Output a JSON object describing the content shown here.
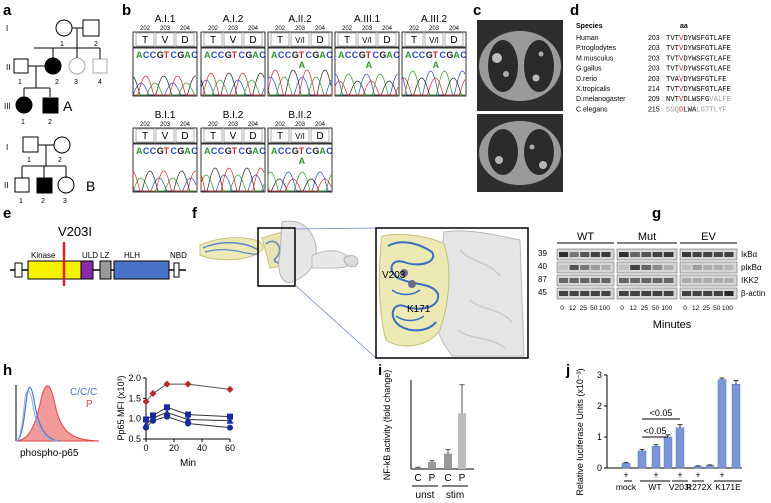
{
  "panel_labels": [
    "a",
    "b",
    "c",
    "d",
    "e",
    "f",
    "g",
    "h",
    "i",
    "j"
  ],
  "pedigree": {
    "family_a_label": "A",
    "family_b_label": "B",
    "gen_labels_a": [
      "I",
      "II",
      "III"
    ],
    "gen_labels_b": [
      "I",
      "II"
    ],
    "nums_a_I": [
      "1",
      "2"
    ],
    "nums_a_II": [
      "1",
      "2",
      "3",
      "4"
    ],
    "nums_a_III": [
      "1",
      "2"
    ],
    "nums_b_I": [
      "1",
      "2"
    ],
    "nums_b_II": [
      "1",
      "2",
      "3"
    ]
  },
  "chromatograms": {
    "samples_top": [
      "A.I.1",
      "A.I.2",
      "A.II.2",
      "A.III.1",
      "A.III.2"
    ],
    "samples_bottom": [
      "B.I.1",
      "B.I.2",
      "B.II.2"
    ],
    "positions": [
      "202",
      "203",
      "204"
    ],
    "aa_wt": [
      "T",
      "V",
      "D"
    ],
    "aa_het": [
      "T",
      "V/I",
      "D"
    ],
    "seq_prefix": "ACCG",
    "seq_mid": "T",
    "seq_suffix": "CGAC",
    "variant_base": "A"
  },
  "alignment": {
    "header_species": "Species",
    "header_aa": "aa",
    "rows": [
      {
        "species": "Human",
        "pos": "203",
        "seq": "TVTVDYWSFGTLAFE"
      },
      {
        "species": "P.troglodytes",
        "pos": "203",
        "seq": "TVTVDYWSFGTLAFE"
      },
      {
        "species": "M.musculus",
        "pos": "203",
        "seq": "TVTVDYWSFGTLAFE"
      },
      {
        "species": "G.gallus",
        "pos": "203",
        "seq": "TVTVDYWSFGTLAFE"
      },
      {
        "species": "D.rerio",
        "pos": "203",
        "seq": "TVAVDYWSFGTLFE"
      },
      {
        "species": "X.tropicalis",
        "pos": "214",
        "seq": "TVTVDYWSFGTLAFE"
      },
      {
        "species": "D.melanogaster",
        "pos": "209",
        "seq": "NVTVDLWSFGVALFE"
      },
      {
        "species": "C.elegans",
        "pos": "215",
        "seq": "SSQDLWALGTTLYF"
      }
    ]
  },
  "domain_map": {
    "variant": "V203I",
    "domains": [
      "Kinase",
      "ULD",
      "LZ",
      "HLH",
      "NBD"
    ],
    "colors": {
      "kinase": "#f7f200",
      "uld": "#8a2aa6",
      "lz": "#9a9a9a",
      "hlh": "#4a72c6",
      "variant_line": "#e02020"
    }
  },
  "structure": {
    "residue_labels": [
      "V203",
      "K171"
    ]
  },
  "western": {
    "groups": [
      "WT",
      "Mut",
      "EV"
    ],
    "mw": [
      "39",
      "40",
      "87",
      "45"
    ],
    "proteins": [
      "IκBα",
      "pIκBα",
      "IKK2",
      "β-actin"
    ],
    "timepoints": [
      "0",
      "12",
      "25",
      "50",
      "100"
    ],
    "xlabel": "Minutes"
  },
  "flow": {
    "legend_c": "C/C/C",
    "legend_p": "P",
    "xlabel": "phospho-p65",
    "color_c": "#4a78c8",
    "color_p": "#e04646"
  },
  "chart_data": [
    {
      "type": "line",
      "ylabel": "Pp65 MFI (x10³)",
      "xlabel": "Min",
      "xlim": [
        0,
        60
      ],
      "ylim": [
        0.5,
        2.0
      ],
      "xticks": [
        0,
        20,
        40,
        60
      ],
      "yticks": [
        0.5,
        1.0,
        1.5,
        2.0
      ],
      "series": [
        {
          "color": "#b82a2a",
          "marker": "diamond",
          "x": [
            0,
            5,
            15,
            30,
            60
          ],
          "y": [
            1.42,
            1.62,
            1.85,
            1.85,
            1.72
          ]
        },
        {
          "color": "#1a2a9a",
          "marker": "square",
          "x": [
            0,
            5,
            15,
            30,
            60
          ],
          "y": [
            0.98,
            1.08,
            1.28,
            1.1,
            1.05
          ]
        },
        {
          "color": "#1a2a9a",
          "marker": "triangle",
          "x": [
            0,
            5,
            15,
            30,
            60
          ],
          "y": [
            0.85,
            1.02,
            1.15,
            0.98,
            0.95
          ]
        },
        {
          "color": "#1a2a9a",
          "marker": "circle",
          "x": [
            0,
            5,
            15,
            30,
            60
          ],
          "y": [
            0.78,
            0.95,
            1.05,
            0.88,
            0.78
          ]
        }
      ]
    },
    {
      "type": "bar",
      "ylabel": "NF-kB activity (fold change)",
      "categories": [
        "C",
        "P",
        "C",
        "P"
      ],
      "groups": [
        "unst",
        "stim"
      ],
      "values": [
        1,
        6,
        13,
        47
      ],
      "errors": [
        0.5,
        1,
        3.5,
        24
      ],
      "ylim": [
        0,
        75
      ],
      "colors": [
        "#7a7a7a",
        "#9a9a9a",
        "#9a9a9a",
        "#bdbdbd"
      ]
    },
    {
      "type": "bar",
      "ylabel": "Relative luciferase Units (x10⁻³)",
      "tick_plus": "+",
      "groups": [
        "mock",
        "WT",
        "V203I",
        "R272X",
        "K171E"
      ],
      "sig_label": "<0.05",
      "values": [
        0.15,
        0.55,
        0.7,
        1.0,
        1.3,
        0.05,
        0.08,
        2.85,
        2.7
      ],
      "errors": [
        0.03,
        0.05,
        0.05,
        0.07,
        0.1,
        0.02,
        0.02,
        0.05,
        0.12
      ],
      "ylim": [
        0,
        3
      ],
      "yticks": [
        0,
        1,
        2,
        3
      ],
      "color": "#7a96d8"
    }
  ]
}
